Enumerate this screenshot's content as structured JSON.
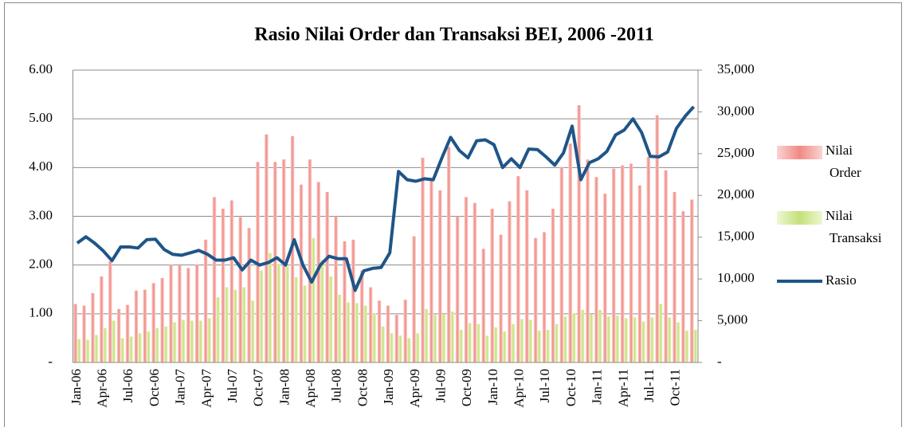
{
  "chart_data": {
    "type": "combo",
    "title": "Rasio Nilai Order dan Transaksi BEI, 2006 -2011",
    "categories": [
      "Jan-06",
      null,
      null,
      "Apr-06",
      null,
      null,
      "Jul-06",
      null,
      null,
      "Oct-06",
      null,
      null,
      "Jan-07",
      null,
      null,
      "Apr-07",
      null,
      null,
      "Jul-07",
      null,
      null,
      "Oct-07",
      null,
      null,
      "Jan-08",
      null,
      null,
      "Apr-08",
      null,
      null,
      "Jul-08",
      null,
      null,
      "Oct-08",
      null,
      null,
      "Jan-09",
      null,
      null,
      "Apr-09",
      null,
      null,
      "Jul-09",
      null,
      null,
      "Oct-09",
      null,
      null,
      "Jan-10",
      null,
      null,
      "Apr-10",
      null,
      null,
      "Jul-10",
      null,
      null,
      "Oct-10",
      null,
      null,
      "Jan-11",
      null,
      null,
      "Apr-11",
      null,
      null,
      "Jul-11",
      null,
      null,
      "Oct-11",
      null,
      null
    ],
    "series": [
      {
        "name": "Nilai Order",
        "color": "#f08a84",
        "axis": "y2",
        "kind": "bar",
        "values": [
          7000,
          6800,
          8300,
          10300,
          12100,
          6400,
          6900,
          8600,
          8700,
          9500,
          10100,
          11700,
          11600,
          11300,
          11700,
          14700,
          19800,
          18400,
          19400,
          17400,
          16100,
          24000,
          27300,
          24000,
          24300,
          27100,
          21300,
          24300,
          21600,
          20400,
          17500,
          14500,
          14700,
          11000,
          9000,
          7400,
          6800,
          5700,
          7500,
          15100,
          24500,
          21800,
          20600,
          25800,
          17500,
          19800,
          19100,
          13600,
          18400,
          15300,
          19300,
          22300,
          20600,
          14900,
          15600,
          18400,
          23400,
          26200,
          30800,
          24300,
          22200,
          20200,
          23200,
          23600,
          23800,
          21200,
          24600,
          29600,
          23000,
          20400,
          18100,
          19500
        ]
      },
      {
        "name": "Nilai Transaksi",
        "color": "#c5e07a",
        "axis": "y2",
        "kind": "bar",
        "values": [
          2800,
          2700,
          3300,
          4100,
          5000,
          2900,
          3100,
          3500,
          3700,
          4100,
          4300,
          4800,
          5100,
          5000,
          5000,
          5300,
          7800,
          9000,
          8700,
          9000,
          7400,
          11000,
          13100,
          11800,
          11500,
          10200,
          9200,
          14900,
          12300,
          10300,
          8100,
          7200,
          7100,
          6800,
          5900,
          4300,
          3500,
          3200,
          2900,
          3500,
          6400,
          5700,
          5800,
          6100,
          3900,
          4700,
          4600,
          3200,
          4200,
          3700,
          4600,
          5200,
          5100,
          3800,
          3900,
          4600,
          5500,
          5900,
          6300,
          5800,
          6300,
          5500,
          5600,
          5300,
          5400,
          4900,
          5400,
          7000,
          5400,
          4800,
          3800,
          3900
        ]
      },
      {
        "name": "Rasio",
        "color": "#1f5588",
        "axis": "y",
        "kind": "line",
        "values": [
          2.45,
          2.58,
          2.45,
          2.29,
          2.09,
          2.37,
          2.37,
          2.35,
          2.52,
          2.53,
          2.32,
          2.22,
          2.2,
          2.25,
          2.3,
          2.22,
          2.1,
          2.1,
          2.15,
          1.9,
          2.1,
          2.0,
          2.05,
          2.15,
          2.0,
          2.52,
          2.0,
          1.65,
          2.0,
          2.18,
          2.13,
          2.13,
          1.48,
          1.88,
          1.93,
          1.95,
          2.25,
          3.92,
          3.75,
          3.72,
          3.77,
          3.75,
          4.2,
          4.62,
          4.35,
          4.2,
          4.55,
          4.57,
          4.47,
          4.0,
          4.18,
          4.0,
          4.38,
          4.37,
          4.22,
          4.05,
          4.3,
          4.85,
          3.75,
          4.1,
          4.18,
          4.33,
          4.67,
          4.77,
          5.0,
          4.72,
          4.23,
          4.22,
          4.32,
          4.8,
          5.05,
          5.25
        ]
      }
    ],
    "ylim": [
      0,
      6
    ],
    "yticks": [
      {
        "value": 0,
        "label": "-"
      },
      {
        "value": 1,
        "label": "1.00"
      },
      {
        "value": 2,
        "label": "2.00"
      },
      {
        "value": 3,
        "label": "3.00"
      },
      {
        "value": 4,
        "label": "4.00"
      },
      {
        "value": 5,
        "label": "5.00"
      },
      {
        "value": 6,
        "label": "6.00"
      }
    ],
    "y2lim": [
      0,
      35000
    ],
    "y2ticks": [
      {
        "value": 0,
        "label": "-"
      },
      {
        "value": 5000,
        "label": "5,000"
      },
      {
        "value": 10000,
        "label": "10,000"
      },
      {
        "value": 15000,
        "label": "15,000"
      },
      {
        "value": 20000,
        "label": "20,000"
      },
      {
        "value": 25000,
        "label": "25,000"
      },
      {
        "value": 30000,
        "label": "30,000"
      },
      {
        "value": 35000,
        "label": "35,000"
      }
    ],
    "grid": true,
    "legend": "right"
  }
}
